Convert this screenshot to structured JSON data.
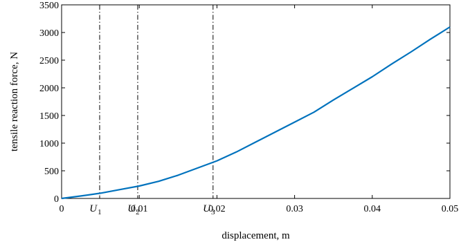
{
  "chart_data": {
    "type": "line",
    "title": "",
    "xlabel": "displacement, m",
    "ylabel": "tensile reaction force, N",
    "xlim": [
      0,
      0.05
    ],
    "ylim": [
      0,
      3500
    ],
    "xticks": [
      {
        "value": 0,
        "label": "0"
      },
      {
        "value": 0.01,
        "label": "0.01"
      },
      {
        "value": 0.02,
        "label": "0.02"
      },
      {
        "value": 0.03,
        "label": "0.03"
      },
      {
        "value": 0.04,
        "label": "0.04"
      },
      {
        "value": 0.05,
        "label": "0.05"
      }
    ],
    "yticks": [
      0,
      500,
      1000,
      1500,
      2000,
      2500,
      3000,
      3500
    ],
    "grid": false,
    "series": [
      {
        "color": "#0072bd",
        "x": [
          0,
          0.0025,
          0.005,
          0.0075,
          0.01,
          0.0125,
          0.015,
          0.0175,
          0.02,
          0.0225,
          0.025,
          0.0275,
          0.03,
          0.0325,
          0.035,
          0.0375,
          0.04,
          0.0425,
          0.045,
          0.0475,
          0.05
        ],
        "y": [
          0,
          45,
          95,
          160,
          225,
          310,
          420,
          550,
          680,
          840,
          1020,
          1200,
          1380,
          1560,
          1780,
          1990,
          2200,
          2430,
          2650,
          2880,
          3100
        ]
      }
    ],
    "markers": [
      {
        "label": "U",
        "sub": "1",
        "x": 0.0049
      },
      {
        "label": "U",
        "sub": "2",
        "x": 0.0098
      },
      {
        "label": "U",
        "sub": "3",
        "x": 0.0195
      }
    ]
  }
}
